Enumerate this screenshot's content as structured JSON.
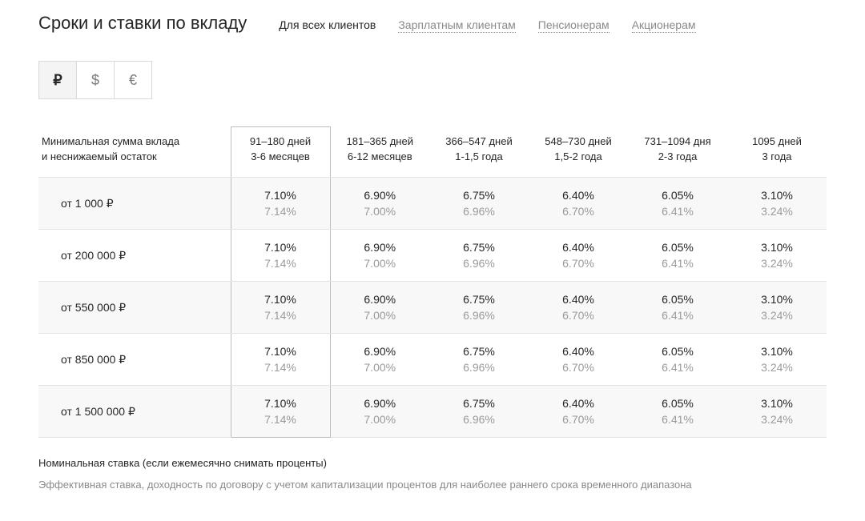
{
  "title": "Сроки и ставки по вкладу",
  "client_tabs": [
    {
      "label": "Для всех клиентов",
      "active": true
    },
    {
      "label": "Зарплатным клиентам",
      "active": false
    },
    {
      "label": "Пенсионерам",
      "active": false
    },
    {
      "label": "Акционерам",
      "active": false
    }
  ],
  "currency_tabs": [
    {
      "symbol": "₽",
      "active": true
    },
    {
      "symbol": "$",
      "active": false
    },
    {
      "symbol": "€",
      "active": false
    }
  ],
  "table": {
    "row_header_line1": "Минимальная сумма вклада",
    "row_header_line2": "и неснижаемый остаток",
    "highlight_col_index": 0,
    "columns": [
      {
        "title": "91–180 дней",
        "subtitle": "3-6 месяцев"
      },
      {
        "title": "181–365 дней",
        "subtitle": "6-12 месяцев"
      },
      {
        "title": "366–547 дней",
        "subtitle": "1-1,5 года"
      },
      {
        "title": "548–730 дней",
        "subtitle": "1,5-2 года"
      },
      {
        "title": "731–1094 дня",
        "subtitle": "2-3 года"
      },
      {
        "title": "1095 дней",
        "subtitle": "3 года"
      }
    ],
    "rows": [
      {
        "label": "от 1 000 ₽",
        "cells": [
          {
            "main": "7.10%",
            "sub": "7.14%"
          },
          {
            "main": "6.90%",
            "sub": "7.00%"
          },
          {
            "main": "6.75%",
            "sub": "6.96%"
          },
          {
            "main": "6.40%",
            "sub": "6.70%"
          },
          {
            "main": "6.05%",
            "sub": "6.41%"
          },
          {
            "main": "3.10%",
            "sub": "3.24%"
          }
        ]
      },
      {
        "label": "от 200 000 ₽",
        "cells": [
          {
            "main": "7.10%",
            "sub": "7.14%"
          },
          {
            "main": "6.90%",
            "sub": "7.00%"
          },
          {
            "main": "6.75%",
            "sub": "6.96%"
          },
          {
            "main": "6.40%",
            "sub": "6.70%"
          },
          {
            "main": "6.05%",
            "sub": "6.41%"
          },
          {
            "main": "3.10%",
            "sub": "3.24%"
          }
        ]
      },
      {
        "label": "от 550 000 ₽",
        "cells": [
          {
            "main": "7.10%",
            "sub": "7.14%"
          },
          {
            "main": "6.90%",
            "sub": "7.00%"
          },
          {
            "main": "6.75%",
            "sub": "6.96%"
          },
          {
            "main": "6.40%",
            "sub": "6.70%"
          },
          {
            "main": "6.05%",
            "sub": "6.41%"
          },
          {
            "main": "3.10%",
            "sub": "3.24%"
          }
        ]
      },
      {
        "label": "от 850 000 ₽",
        "cells": [
          {
            "main": "7.10%",
            "sub": "7.14%"
          },
          {
            "main": "6.90%",
            "sub": "7.00%"
          },
          {
            "main": "6.75%",
            "sub": "6.96%"
          },
          {
            "main": "6.40%",
            "sub": "6.70%"
          },
          {
            "main": "6.05%",
            "sub": "6.41%"
          },
          {
            "main": "3.10%",
            "sub": "3.24%"
          }
        ]
      },
      {
        "label": "от 1 500 000 ₽",
        "cells": [
          {
            "main": "7.10%",
            "sub": "7.14%"
          },
          {
            "main": "6.90%",
            "sub": "7.00%"
          },
          {
            "main": "6.75%",
            "sub": "6.96%"
          },
          {
            "main": "6.40%",
            "sub": "6.70%"
          },
          {
            "main": "6.05%",
            "sub": "6.41%"
          },
          {
            "main": "3.10%",
            "sub": "3.24%"
          }
        ]
      }
    ]
  },
  "footnotes": {
    "main": "Номинальная ставка (если ежемесячно снимать проценты)",
    "sub": "Эффективная ставка, доходность по договору с учетом капитализации процентов для наиболее раннего срока временного диапазона"
  },
  "colors": {
    "text": "#262626",
    "muted": "#8a8a8a",
    "rate_sub": "#9a9a9a",
    "border": "#e3e3e3",
    "hl_border": "#bdbdbd",
    "zebra": "#f8f8f8",
    "tab_border": "#d9d9d9",
    "tab_active_bg": "#f4f4f4",
    "background": "#ffffff"
  }
}
